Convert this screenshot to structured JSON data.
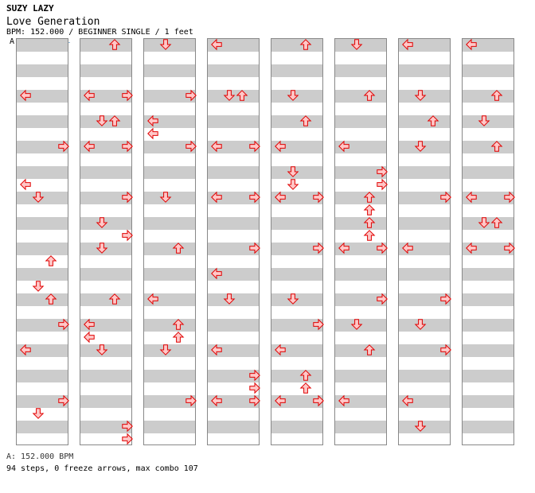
{
  "header": {
    "artist": "SUZY LAZY",
    "title": "Love Generation",
    "info": "BPM: 152.000 / BEGINNER SINGLE / 1 feet",
    "bpm_marker": "A"
  },
  "footer": {
    "bpm_legend": "A: 152.000 BPM",
    "summary": "94 steps, 0 freeze arrows, max combo 107"
  },
  "colors": {
    "arrow_fill": "#ffc8c8",
    "arrow_stroke": "#e00000",
    "band": "#cccccc"
  },
  "chart_data": {
    "type": "table",
    "description": "step chart: 8 columns x 32 rows, lanes L D U R",
    "columns": 8,
    "rows_per_column": 32,
    "lanes": [
      "left",
      "down",
      "up",
      "right"
    ],
    "steps": [
      [
        0,
        4,
        "left"
      ],
      [
        0,
        8,
        "right"
      ],
      [
        0,
        11,
        "left"
      ],
      [
        0,
        12,
        "down"
      ],
      [
        0,
        17,
        "up"
      ],
      [
        0,
        19,
        "down"
      ],
      [
        0,
        20,
        "up"
      ],
      [
        0,
        22,
        "right"
      ],
      [
        0,
        24,
        "left"
      ],
      [
        0,
        28,
        "right"
      ],
      [
        0,
        29,
        "down"
      ],
      [
        1,
        0,
        "up"
      ],
      [
        1,
        4,
        "left"
      ],
      [
        1,
        4,
        "right"
      ],
      [
        1,
        6,
        "down"
      ],
      [
        1,
        6,
        "up"
      ],
      [
        1,
        8,
        "left"
      ],
      [
        1,
        8,
        "right"
      ],
      [
        1,
        12,
        "right"
      ],
      [
        1,
        14,
        "down"
      ],
      [
        1,
        15,
        "right"
      ],
      [
        1,
        16,
        "down"
      ],
      [
        1,
        20,
        "up"
      ],
      [
        1,
        22,
        "left"
      ],
      [
        1,
        23,
        "left"
      ],
      [
        1,
        24,
        "down"
      ],
      [
        1,
        30,
        "right"
      ],
      [
        1,
        31,
        "right"
      ],
      [
        2,
        0,
        "down"
      ],
      [
        2,
        4,
        "right"
      ],
      [
        2,
        6,
        "left"
      ],
      [
        2,
        7,
        "left"
      ],
      [
        2,
        8,
        "right"
      ],
      [
        2,
        12,
        "down"
      ],
      [
        2,
        16,
        "up"
      ],
      [
        2,
        20,
        "left"
      ],
      [
        2,
        22,
        "up"
      ],
      [
        2,
        23,
        "up"
      ],
      [
        2,
        24,
        "down"
      ],
      [
        2,
        28,
        "right"
      ],
      [
        3,
        0,
        "left"
      ],
      [
        3,
        4,
        "down"
      ],
      [
        3,
        4,
        "up"
      ],
      [
        3,
        8,
        "left"
      ],
      [
        3,
        8,
        "right"
      ],
      [
        3,
        12,
        "left"
      ],
      [
        3,
        12,
        "right"
      ],
      [
        3,
        16,
        "right"
      ],
      [
        3,
        18,
        "left"
      ],
      [
        3,
        20,
        "down"
      ],
      [
        3,
        24,
        "left"
      ],
      [
        3,
        26,
        "right"
      ],
      [
        3,
        27,
        "right"
      ],
      [
        3,
        28,
        "left"
      ],
      [
        3,
        28,
        "right"
      ],
      [
        4,
        0,
        "up"
      ],
      [
        4,
        4,
        "down"
      ],
      [
        4,
        6,
        "up"
      ],
      [
        4,
        8,
        "left"
      ],
      [
        4,
        10,
        "down"
      ],
      [
        4,
        11,
        "down"
      ],
      [
        4,
        12,
        "left"
      ],
      [
        4,
        12,
        "right"
      ],
      [
        4,
        16,
        "right"
      ],
      [
        4,
        20,
        "down"
      ],
      [
        4,
        22,
        "right"
      ],
      [
        4,
        24,
        "left"
      ],
      [
        4,
        26,
        "up"
      ],
      [
        4,
        27,
        "up"
      ],
      [
        4,
        28,
        "left"
      ],
      [
        4,
        28,
        "right"
      ],
      [
        5,
        0,
        "down"
      ],
      [
        5,
        4,
        "up"
      ],
      [
        5,
        8,
        "left"
      ],
      [
        5,
        10,
        "right"
      ],
      [
        5,
        11,
        "right"
      ],
      [
        5,
        12,
        "up"
      ],
      [
        5,
        13,
        "up"
      ],
      [
        5,
        14,
        "up"
      ],
      [
        5,
        15,
        "up"
      ],
      [
        5,
        16,
        "left"
      ],
      [
        5,
        16,
        "right"
      ],
      [
        5,
        20,
        "right"
      ],
      [
        5,
        22,
        "down"
      ],
      [
        5,
        24,
        "up"
      ],
      [
        5,
        28,
        "left"
      ],
      [
        6,
        0,
        "left"
      ],
      [
        6,
        4,
        "down"
      ],
      [
        6,
        6,
        "up"
      ],
      [
        6,
        8,
        "down"
      ],
      [
        6,
        12,
        "right"
      ],
      [
        6,
        16,
        "left"
      ],
      [
        6,
        20,
        "right"
      ],
      [
        6,
        22,
        "down"
      ],
      [
        6,
        24,
        "right"
      ],
      [
        6,
        28,
        "left"
      ],
      [
        6,
        30,
        "down"
      ],
      [
        7,
        0,
        "left"
      ],
      [
        7,
        4,
        "up"
      ],
      [
        7,
        6,
        "down"
      ],
      [
        7,
        8,
        "up"
      ],
      [
        7,
        12,
        "left"
      ],
      [
        7,
        12,
        "right"
      ],
      [
        7,
        14,
        "down"
      ],
      [
        7,
        14,
        "up"
      ],
      [
        7,
        16,
        "left"
      ],
      [
        7,
        16,
        "right"
      ]
    ]
  }
}
